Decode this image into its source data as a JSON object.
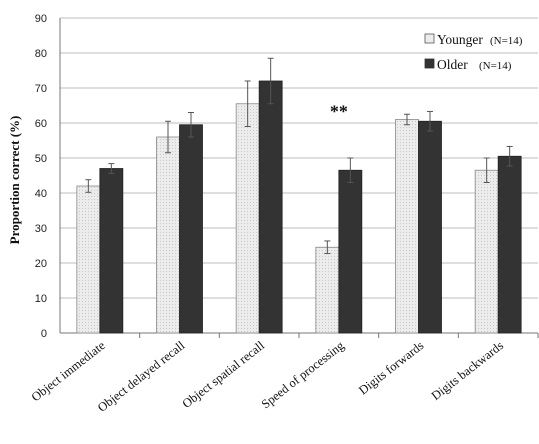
{
  "chart_data": {
    "type": "bar",
    "ylabel": "Proportion correct (%)",
    "xlabel": "",
    "ylim": [
      0,
      90
    ],
    "yticks": [
      0,
      10,
      20,
      30,
      40,
      50,
      60,
      70,
      80,
      90
    ],
    "grid": true,
    "legend_position": "top-right",
    "categories": [
      "Object immediate",
      "Object delayed recall",
      "Object spatial recall",
      "Speed of processing",
      "Digits forwards",
      "Digits backwards"
    ],
    "series": [
      {
        "name": "Younger",
        "n_label": "(N=14)",
        "color": "#ececec",
        "values": [
          42,
          56,
          65.5,
          24.5,
          61,
          46.5
        ],
        "errors": [
          1.8,
          4.5,
          6.5,
          1.8,
          1.5,
          3.5
        ]
      },
      {
        "name": "Older",
        "n_label": "(N=14)",
        "color": "#333333",
        "values": [
          47,
          59.5,
          72,
          46.5,
          60.5,
          50.5
        ],
        "errors": [
          1.4,
          3.5,
          6.5,
          3.5,
          2.8,
          2.8
        ]
      }
    ],
    "annotations": [
      {
        "text": "**",
        "category": "Speed of processing",
        "y": 65
      }
    ]
  }
}
